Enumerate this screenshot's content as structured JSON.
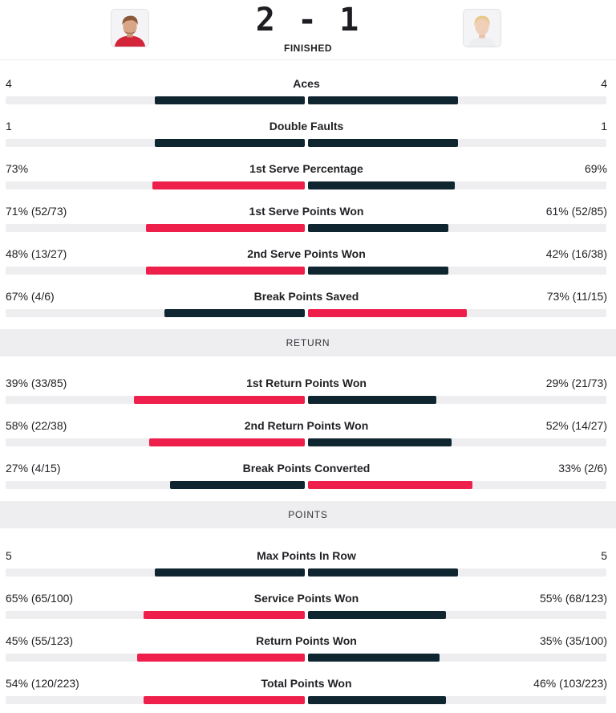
{
  "header": {
    "score": "2 - 1",
    "status": "FINISHED",
    "home_avatar_icon": "player-avatar-icon",
    "away_avatar_icon": "player-avatar-icon"
  },
  "colors": {
    "accent": "#ee1f4b",
    "dark": "#0f2530",
    "track": "#eeeef0"
  },
  "sections": {
    "return_title": "RETURN",
    "points_title": "POINTS"
  },
  "stats": [
    {
      "label": "Aces",
      "home": "4",
      "away": "4",
      "home_pct": 0.5,
      "away_pct": 0.5,
      "home_color": "dark",
      "away_color": "dark"
    },
    {
      "label": "Double Faults",
      "home": "1",
      "away": "1",
      "home_pct": 0.5,
      "away_pct": 0.5,
      "home_color": "dark",
      "away_color": "dark"
    },
    {
      "label": "1st Serve Percentage",
      "home": "73%",
      "away": "69%",
      "home_pct": 0.51,
      "away_pct": 0.49,
      "home_color": "red",
      "away_color": "dark"
    },
    {
      "label": "1st Serve Points Won",
      "home": "71% (52/73)",
      "away": "61% (52/85)",
      "home_pct": 0.53,
      "away_pct": 0.47,
      "home_color": "red",
      "away_color": "dark"
    },
    {
      "label": "2nd Serve Points Won",
      "home": "48% (13/27)",
      "away": "42% (16/38)",
      "home_pct": 0.53,
      "away_pct": 0.47,
      "home_color": "red",
      "away_color": "dark"
    },
    {
      "label": "Break Points Saved",
      "home": "67% (4/6)",
      "away": "73% (11/15)",
      "home_pct": 0.47,
      "away_pct": 0.53,
      "home_color": "dark",
      "away_color": "red"
    },
    {
      "label": "1st Return Points Won",
      "home": "39% (33/85)",
      "away": "29% (21/73)",
      "home_pct": 0.57,
      "away_pct": 0.43,
      "home_color": "red",
      "away_color": "dark"
    },
    {
      "label": "2nd Return Points Won",
      "home": "58% (22/38)",
      "away": "52% (14/27)",
      "home_pct": 0.52,
      "away_pct": 0.48,
      "home_color": "red",
      "away_color": "dark"
    },
    {
      "label": "Break Points Converted",
      "home": "27% (4/15)",
      "away": "33% (2/6)",
      "home_pct": 0.45,
      "away_pct": 0.55,
      "home_color": "dark",
      "away_color": "red"
    },
    {
      "label": "Max Points In Row",
      "home": "5",
      "away": "5",
      "home_pct": 0.5,
      "away_pct": 0.5,
      "home_color": "dark",
      "away_color": "dark"
    },
    {
      "label": "Service Points Won",
      "home": "65% (65/100)",
      "away": "55% (68/123)",
      "home_pct": 0.54,
      "away_pct": 0.46,
      "home_color": "red",
      "away_color": "dark"
    },
    {
      "label": "Return Points Won",
      "home": "45% (55/123)",
      "away": "35% (35/100)",
      "home_pct": 0.56,
      "away_pct": 0.44,
      "home_color": "red",
      "away_color": "dark"
    },
    {
      "label": "Total Points Won",
      "home": "54% (120/223)",
      "away": "46% (103/223)",
      "home_pct": 0.54,
      "away_pct": 0.46,
      "home_color": "red",
      "away_color": "dark"
    }
  ]
}
